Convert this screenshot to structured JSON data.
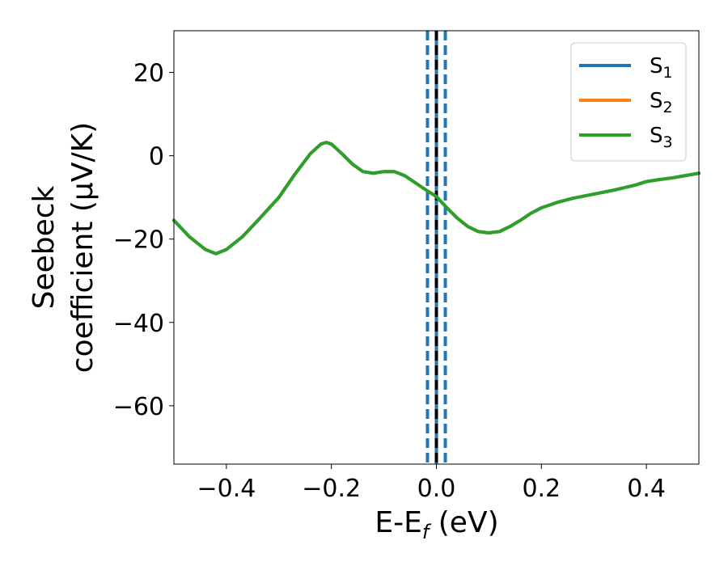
{
  "chart_data": {
    "type": "line",
    "xlabel": {
      "main": "E-E",
      "sub": "f",
      "unit": " (eV)"
    },
    "ylabel": {
      "line1": "Seebeck",
      "line2": "coefficient  (μV/K)"
    },
    "xlim": [
      -0.5,
      0.5
    ],
    "ylim": [
      -74,
      30
    ],
    "xticks": [
      -0.4,
      -0.2,
      0.0,
      0.2,
      0.4
    ],
    "xtick_labels": [
      "−0.4",
      "−0.2",
      "0.0",
      "0.2",
      "0.4"
    ],
    "yticks": [
      20,
      0,
      -20,
      -40,
      -60
    ],
    "ytick_labels": [
      "20",
      "0",
      "−20",
      "−40",
      "−60"
    ],
    "grid": false,
    "legend_position": "top-right",
    "series": [
      {
        "name": "S",
        "sub": "1",
        "color": "#1f77b4",
        "x": [
          -0.5,
          -0.47,
          -0.44,
          -0.42,
          -0.4,
          -0.37,
          -0.34,
          -0.3,
          -0.27,
          -0.24,
          -0.22,
          -0.21,
          -0.2,
          -0.18,
          -0.16,
          -0.14,
          -0.12,
          -0.1,
          -0.08,
          -0.06,
          -0.04,
          -0.02,
          0.0,
          0.02,
          0.04,
          0.06,
          0.08,
          0.1,
          0.12,
          0.14,
          0.16,
          0.18,
          0.2,
          0.23,
          0.26,
          0.3,
          0.34,
          0.38,
          0.4,
          0.42,
          0.45,
          0.5
        ],
        "y": [
          -15.5,
          -19.5,
          -22.5,
          -23.5,
          -22.5,
          -19.5,
          -15.5,
          -10,
          -4.5,
          0.5,
          2.8,
          3.2,
          2.8,
          0.5,
          -2,
          -3.8,
          -4.2,
          -3.8,
          -3.8,
          -4.8,
          -6.5,
          -8.2,
          -9.8,
          -12.5,
          -15,
          -17,
          -18.2,
          -18.5,
          -18.2,
          -17,
          -15.5,
          -13.8,
          -12.5,
          -11.2,
          -10.2,
          -9.2,
          -8.2,
          -7,
          -6.2,
          -5.8,
          -5.3,
          -4.2
        ]
      },
      {
        "name": "S",
        "sub": "2",
        "color": "#ff7f0e",
        "x": [
          -0.5,
          -0.47,
          -0.44,
          -0.42,
          -0.4,
          -0.37,
          -0.34,
          -0.3,
          -0.27,
          -0.24,
          -0.22,
          -0.21,
          -0.2,
          -0.18,
          -0.16,
          -0.14,
          -0.12,
          -0.1,
          -0.08,
          -0.06,
          -0.04,
          -0.02,
          0.0,
          0.02,
          0.04,
          0.06,
          0.08,
          0.1,
          0.12,
          0.14,
          0.16,
          0.18,
          0.2,
          0.23,
          0.26,
          0.3,
          0.34,
          0.38,
          0.4,
          0.42,
          0.45,
          0.5
        ],
        "y": [
          -15.5,
          -19.5,
          -22.5,
          -23.5,
          -22.5,
          -19.5,
          -15.5,
          -10,
          -4.5,
          0.5,
          2.8,
          3.2,
          2.8,
          0.5,
          -2,
          -3.8,
          -4.2,
          -3.8,
          -3.8,
          -4.8,
          -6.5,
          -8.2,
          -9.8,
          -12.5,
          -15,
          -17,
          -18.2,
          -18.5,
          -18.2,
          -17,
          -15.5,
          -13.8,
          -12.5,
          -11.2,
          -10.2,
          -9.2,
          -8.2,
          -7,
          -6.2,
          -5.8,
          -5.3,
          -4.2
        ]
      },
      {
        "name": "S",
        "sub": "3",
        "color": "#2ca02c",
        "x": [
          -0.5,
          -0.47,
          -0.44,
          -0.42,
          -0.4,
          -0.37,
          -0.34,
          -0.3,
          -0.27,
          -0.24,
          -0.22,
          -0.21,
          -0.2,
          -0.18,
          -0.16,
          -0.14,
          -0.12,
          -0.1,
          -0.08,
          -0.06,
          -0.04,
          -0.02,
          0.0,
          0.02,
          0.04,
          0.06,
          0.08,
          0.1,
          0.12,
          0.14,
          0.16,
          0.18,
          0.2,
          0.23,
          0.26,
          0.3,
          0.34,
          0.38,
          0.4,
          0.42,
          0.45,
          0.5
        ],
        "y": [
          -15.5,
          -19.5,
          -22.5,
          -23.5,
          -22.5,
          -19.5,
          -15.5,
          -10,
          -4.5,
          0.5,
          2.8,
          3.2,
          2.8,
          0.5,
          -2,
          -3.8,
          -4.2,
          -3.8,
          -3.8,
          -4.8,
          -6.5,
          -8.2,
          -9.8,
          -12.5,
          -15,
          -17,
          -18.2,
          -18.5,
          -18.2,
          -17,
          -15.5,
          -13.8,
          -12.5,
          -11.2,
          -10.2,
          -9.2,
          -8.2,
          -7,
          -6.2,
          -5.8,
          -5.3,
          -4.2
        ]
      }
    ],
    "vlines": [
      {
        "x": -0.017,
        "color": "#1f77b4",
        "style": "dashed"
      },
      {
        "x": 0.0,
        "color": "#1f77b4",
        "style": "solid"
      },
      {
        "x": 0.0,
        "color": "#000000",
        "style": "dashed"
      },
      {
        "x": 0.017,
        "color": "#1f77b4",
        "style": "dashed"
      }
    ]
  }
}
